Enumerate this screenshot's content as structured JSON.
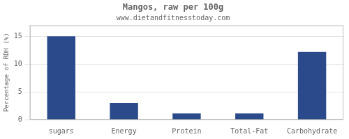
{
  "chart_data": {
    "type": "bar",
    "title": "Mangos, raw per 100g",
    "subtitle": "www.dietandfitnesstoday.com",
    "categories": [
      "sugars",
      "Energy",
      "Protein",
      "Total-Fat",
      "Carbohydrate"
    ],
    "values": [
      15.0,
      3.0,
      1.1,
      1.1,
      12.2
    ],
    "color": "#2b4a8b",
    "ylabel": "Percentage of RDH (%)",
    "ylim": [
      0,
      17
    ],
    "yticks": [
      0,
      5,
      10,
      15
    ],
    "grid": true
  }
}
